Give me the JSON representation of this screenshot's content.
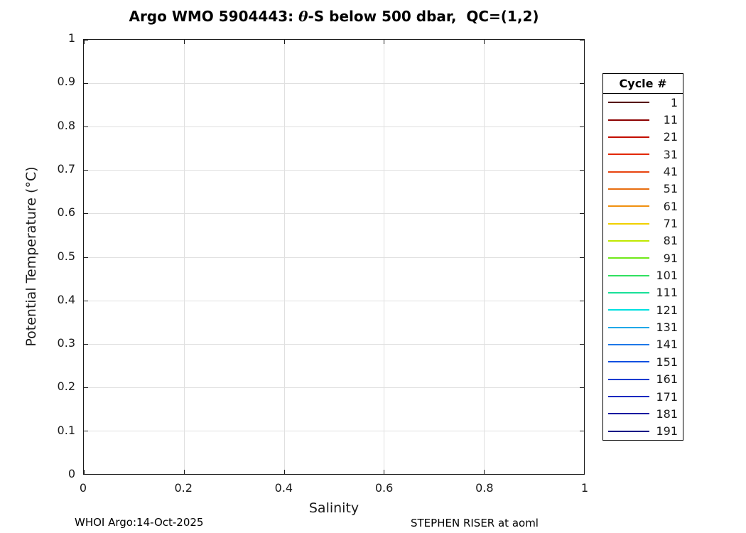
{
  "title": {
    "prefix": "Argo WMO 5904443: ",
    "theta": "θ",
    "suffix": "-S below 500 dbar,  QC=(1,2)"
  },
  "axes": {
    "xlabel": "Salinity",
    "ylabel": "Potential Temperature (°C)"
  },
  "footer": {
    "left": "WHOI Argo:14-Oct-2025",
    "right": "STEPHEN RISER at aoml"
  },
  "legend": {
    "title": "Cycle #"
  },
  "chart_data": {
    "type": "line",
    "title": "Argo WMO 5904443: θ-S below 500 dbar,  QC=(1,2)",
    "xlabel": "Salinity",
    "ylabel": "Potential Temperature (°C)",
    "xlim": [
      0,
      1
    ],
    "ylim": [
      0,
      1
    ],
    "x_ticks": [
      0,
      0.2,
      0.4,
      0.6,
      0.8,
      1
    ],
    "x_tick_labels": [
      "0",
      "0.2",
      "0.4",
      "0.6",
      "0.8",
      "1"
    ],
    "y_ticks": [
      0,
      0.1,
      0.2,
      0.3,
      0.4,
      0.5,
      0.6,
      0.7,
      0.8,
      0.9,
      1
    ],
    "y_tick_labels": [
      "0",
      "0.1",
      "0.2",
      "0.3",
      "0.4",
      "0.5",
      "0.6",
      "0.7",
      "0.8",
      "0.9",
      "1"
    ],
    "grid": true,
    "grid_color": "#e0e0e0",
    "legend_position": "right-outside",
    "legend_title": "Cycle #",
    "series": [
      {
        "name": "1",
        "color": "#550000",
        "points": []
      },
      {
        "name": "11",
        "color": "#8c0000",
        "points": []
      },
      {
        "name": "21",
        "color": "#c30d00",
        "points": []
      },
      {
        "name": "31",
        "color": "#e22800",
        "points": []
      },
      {
        "name": "41",
        "color": "#e84410",
        "points": []
      },
      {
        "name": "51",
        "color": "#e86e10",
        "points": []
      },
      {
        "name": "61",
        "color": "#f09010",
        "points": []
      },
      {
        "name": "71",
        "color": "#f0d000",
        "points": []
      },
      {
        "name": "81",
        "color": "#c0e800",
        "points": []
      },
      {
        "name": "91",
        "color": "#70e818",
        "points": []
      },
      {
        "name": "101",
        "color": "#30e060",
        "points": []
      },
      {
        "name": "111",
        "color": "#18e098",
        "points": []
      },
      {
        "name": "121",
        "color": "#00e0e0",
        "points": []
      },
      {
        "name": "131",
        "color": "#20a8e8",
        "points": []
      },
      {
        "name": "141",
        "color": "#1e78e8",
        "points": []
      },
      {
        "name": "151",
        "color": "#1050e0",
        "points": []
      },
      {
        "name": "161",
        "color": "#0a3cd0",
        "points": []
      },
      {
        "name": "171",
        "color": "#0028c0",
        "points": []
      },
      {
        "name": "181",
        "color": "#0a14a0",
        "points": []
      },
      {
        "name": "191",
        "color": "#000a85",
        "points": []
      }
    ]
  }
}
